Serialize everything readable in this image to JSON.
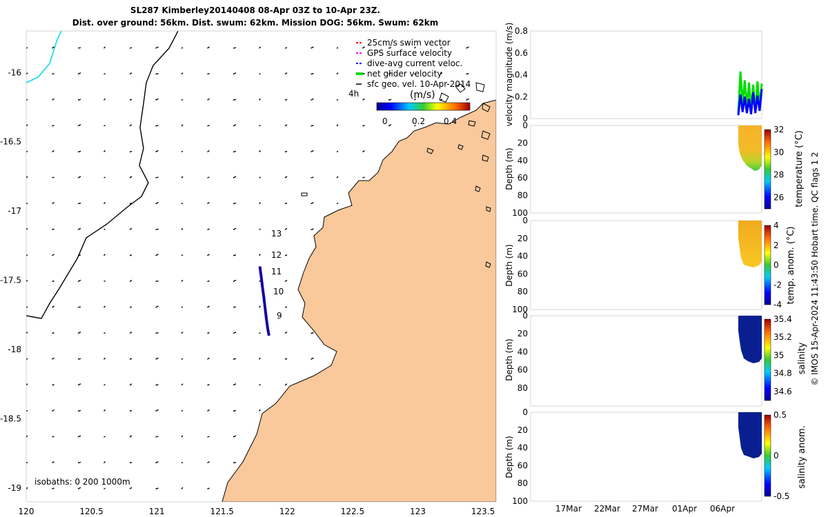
{
  "title": {
    "line1": "SL287 Kimberley20140408 08-Apr 03Z to 10-Apr 23Z.",
    "line2": "Dist. over ground: 56km. Dist. swum: 62km. Mission DOG: 56km. Swum: 62km"
  },
  "map": {
    "legend": [
      {
        "label": "25cm/s swim vector",
        "color": "#ff0000"
      },
      {
        "label": "GPS surface velocity",
        "color": "#ff00ff"
      },
      {
        "label": "dive-avg current veloc.",
        "color": "#0000ff"
      },
      {
        "label": "net glider velocity",
        "color": "#00dd00"
      },
      {
        "label": "sfc geo. vel. 10-Apr-2014",
        "color": "#000000"
      }
    ],
    "time_marker": "4h",
    "colorbar": {
      "label": "(m/s)",
      "ticks": [
        "0",
        "0.2",
        "0.4"
      ]
    },
    "isobaths": "isobaths: 0   200  1000m",
    "day_labels": [
      {
        "label": "13",
        "lat": -17.15
      },
      {
        "label": "12",
        "lat": -17.3
      },
      {
        "label": "11",
        "lat": -17.42
      },
      {
        "label": "10",
        "lat": -17.57
      },
      {
        "label": "9",
        "lat": -17.75
      }
    ],
    "land_color": "#f9c89b",
    "coast_color": "#000000",
    "isobath_color": "#33ddee"
  },
  "chart_data": [
    {
      "type": "scatter",
      "name": "glider track map",
      "xlim": [
        120,
        123.6
      ],
      "ylim": [
        -19.1,
        -15.7
      ],
      "xticks": [
        "120",
        "120.5",
        "121",
        "121.5",
        "122",
        "122.5",
        "123",
        "123.5"
      ],
      "yticks": [
        "-16",
        "-16.5",
        "-17",
        "-17.5",
        "-18",
        "-18.5",
        "-19"
      ],
      "track": {
        "lon": [
          121.79,
          121.8,
          121.81,
          121.82,
          121.83,
          121.84,
          121.85,
          121.86
        ],
        "lat": [
          -17.4,
          -17.47,
          -17.55,
          -17.62,
          -17.7,
          -17.78,
          -17.85,
          -17.9
        ]
      }
    },
    {
      "type": "line",
      "name": "velocity magnitude",
      "ylabel": "velocity magnitude (m/s)",
      "ylim": [
        0,
        0.8
      ],
      "yticks": [
        "0",
        "0.2",
        "0.4",
        "0.6",
        "0.8"
      ],
      "xticks": [
        "17Mar",
        "22Mar",
        "27Mar",
        "01Apr",
        "06Apr"
      ],
      "series": [
        {
          "name": "net glider velocity",
          "color": "#00dd00",
          "values": [
            0.05,
            0.43,
            0.12,
            0.35,
            0.1,
            0.33,
            0.08,
            0.31,
            0.06,
            0.34,
            0.1,
            0.32
          ]
        },
        {
          "name": "dive-avg current veloc.",
          "color": "#0000ff",
          "values": [
            0.03,
            0.22,
            0.06,
            0.2,
            0.05,
            0.18,
            0.04,
            0.24,
            0.05,
            0.21,
            0.07,
            0.27
          ]
        }
      ]
    },
    {
      "type": "heatmap",
      "name": "temperature",
      "ylabel": "Depth (m)",
      "clabel": "temperature (°C)",
      "yticks": [
        "0",
        "20",
        "40",
        "60",
        "80",
        "100"
      ],
      "cticks": [
        "32",
        "30",
        "28",
        "26"
      ],
      "crange": [
        25,
        32
      ]
    },
    {
      "type": "heatmap",
      "name": "temp. anom.",
      "ylabel": "Depth (m)",
      "clabel": "temp. anom. (°C)",
      "yticks": [
        "0",
        "20",
        "40",
        "60",
        "80",
        "100"
      ],
      "cticks": [
        "4",
        "2",
        "0",
        "-2",
        "-4"
      ],
      "crange": [
        -4,
        4
      ]
    },
    {
      "type": "heatmap",
      "name": "salinity",
      "ylabel": "Depth (m)",
      "clabel": "salinity",
      "yticks": [
        "0",
        "20",
        "40",
        "60",
        "80"
      ],
      "cticks": [
        "35.4",
        "35.2",
        "35",
        "34.8",
        "34.6"
      ],
      "crange": [
        34.5,
        35.4
      ]
    },
    {
      "type": "heatmap",
      "name": "salinity anom.",
      "ylabel": "Depth (m)",
      "clabel": "salinity anom.",
      "yticks": [
        "0",
        "20",
        "40",
        "60",
        "80",
        "100"
      ],
      "cticks": [
        "0.5",
        "0",
        "-0.5"
      ],
      "crange": [
        -0.5,
        0.5
      ]
    }
  ],
  "side_note": "© IMOS 15-Apr-2024 11:43:50 Hobart time. QC flags 1  2"
}
